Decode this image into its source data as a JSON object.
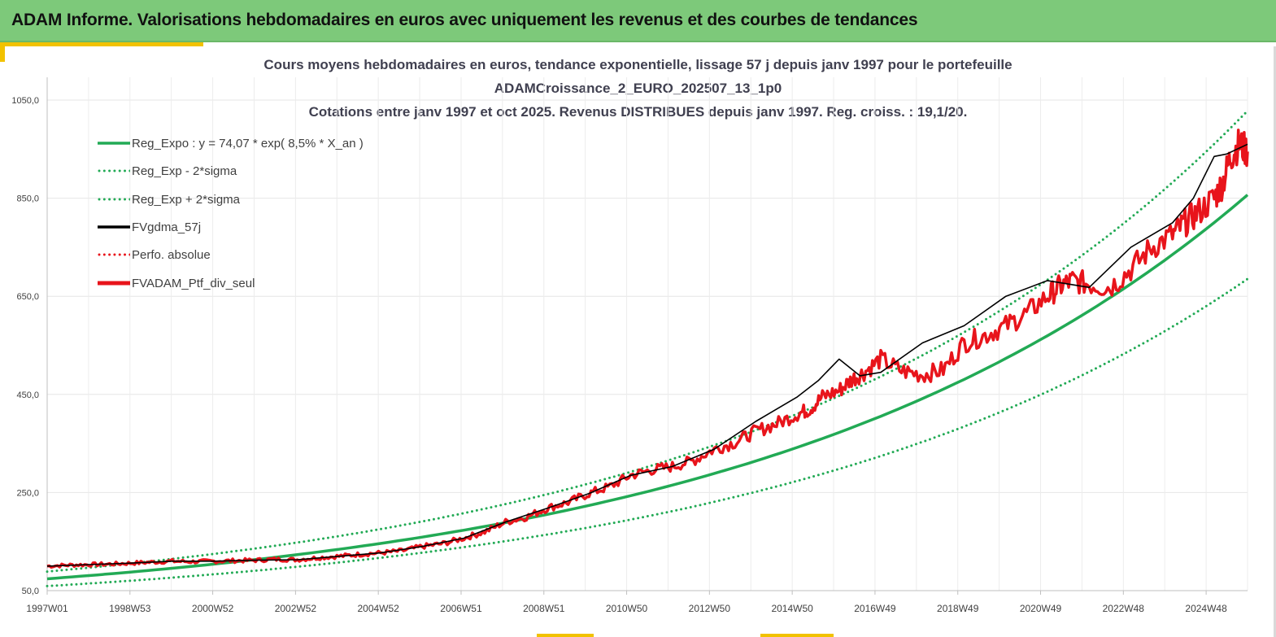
{
  "header": {
    "title": "ADAM Informe. Valorisations hebdomadaires en euros avec uniquement les revenus et des courbes de tendances"
  },
  "colors": {
    "banner": "#7dc97a",
    "accent_yellow": "#f2c200",
    "trend_green": "#22aa55",
    "red": "#e8141b",
    "black": "#000000"
  },
  "chart_data": {
    "type": "line",
    "title_lines": [
      "Cours moyens hebdomadaires  en euros, tendance exponentielle, lissage 57 j depuis janv 1997 pour le portefeuille",
      "ADAMCroissance_2_EURO_202507_13_1p0",
      "Cotations  entre janv 1997 et oct 2025. Revenus DISTRIBUES depuis janv 1997. Reg. croiss. : 19,1/20."
    ],
    "x_tick_labels": [
      "1997W01",
      "1998W53",
      "2000W52",
      "2002W52",
      "2004W52",
      "2006W51",
      "2008W51",
      "2010W50",
      "2012W50",
      "2014W50",
      "2016W49",
      "2018W49",
      "2020W49",
      "2022W48",
      "2024W48"
    ],
    "x_range": [
      "1997W01",
      "2025W43"
    ],
    "y_ticks": [
      50,
      250,
      450,
      650,
      850,
      1050
    ],
    "y_tick_labels": [
      "50,0",
      "250,0",
      "450,0",
      "650,0",
      "850,0",
      "1050,0"
    ],
    "ylim": [
      50,
      1050
    ],
    "grid": true,
    "legend_position": "top-left",
    "trend": {
      "a": 74.07,
      "rate": 0.085,
      "sigma_factor": 0.2
    },
    "series": [
      {
        "name": "Reg_Expo : y = 74,07 * exp( 8,5% *  X_an )",
        "key": "reg",
        "color": "#22aa55",
        "style": "solid",
        "x_year": [
          0,
          2,
          4,
          6,
          8,
          10,
          12,
          14,
          16,
          18,
          20,
          22,
          24,
          26,
          28.8
        ],
        "values": [
          74.1,
          87.9,
          104.1,
          123.5,
          146.4,
          173.6,
          205.8,
          244.0,
          289.3,
          343.0,
          406.7,
          482.2,
          571.7,
          677.8,
          853.0
        ]
      },
      {
        "name": "Reg_Exp - 2*sigma",
        "key": "low",
        "color": "#22aa55",
        "style": "dotted",
        "x_year": [
          0,
          2,
          4,
          6,
          8,
          10,
          12,
          14,
          16,
          18,
          20,
          22,
          24,
          26,
          28.8
        ],
        "values": [
          59.3,
          70.3,
          83.3,
          98.8,
          117.1,
          138.9,
          164.6,
          195.2,
          231.4,
          274.4,
          325.4,
          385.8,
          457.4,
          542.2,
          697.0
        ]
      },
      {
        "name": "Reg_Exp + 2*sigma",
        "key": "high",
        "color": "#22aa55",
        "style": "dotted",
        "x_year": [
          0,
          2,
          4,
          6,
          8,
          10,
          12,
          14,
          16,
          18,
          20,
          22,
          24,
          26,
          28.8
        ],
        "values": [
          88.9,
          105.4,
          124.9,
          148.2,
          175.7,
          208.3,
          246.9,
          292.8,
          347.2,
          411.6,
          488.0,
          578.6,
          686.0,
          813.4,
          1095.0
        ]
      },
      {
        "name": "FVgdma_57j",
        "key": "smooth",
        "color": "#000000",
        "style": "solid",
        "x_year": [
          0,
          1,
          2,
          3,
          4,
          5,
          6,
          7,
          8,
          9,
          10,
          11,
          12,
          13,
          14,
          15,
          16,
          17,
          18,
          18.5,
          19,
          19.5,
          20,
          21,
          22,
          23,
          24,
          25,
          26,
          27,
          27.5,
          28,
          28.3,
          28.8
        ],
        "values": [
          100,
          103,
          106,
          110,
          110,
          112,
          113,
          120,
          127,
          140,
          157,
          190,
          218,
          248,
          285,
          303,
          338,
          395,
          445,
          478,
          522,
          488,
          495,
          555,
          590,
          650,
          682,
          668,
          750,
          800,
          850,
          935,
          940,
          960
        ]
      },
      {
        "name": "Perfo. absolue",
        "key": "perfo",
        "color": "#e8141b",
        "style": "dotted",
        "x_year": [],
        "values": []
      },
      {
        "name": "FVADAM_Ptf_div_seul",
        "key": "ptf",
        "color": "#e8141b",
        "style": "solid",
        "x_year": [
          0,
          0.5,
          1,
          1.5,
          2,
          2.5,
          3,
          3.5,
          4,
          4.5,
          5,
          5.5,
          6,
          6.5,
          7,
          7.5,
          8,
          8.5,
          9,
          9.5,
          10,
          10.5,
          11,
          11.5,
          12,
          12.5,
          13,
          13.5,
          14,
          14.5,
          15,
          15.5,
          16,
          16.5,
          17,
          17.5,
          18,
          18.3,
          18.6,
          19,
          19.3,
          19.6,
          20,
          20.5,
          21,
          21.5,
          22,
          22.5,
          23,
          23.5,
          24,
          24.3,
          24.6,
          25,
          25.5,
          26,
          26.5,
          27,
          27.3,
          27.6,
          28,
          28.2,
          28.4,
          28.6,
          28.8
        ],
        "values": [
          100,
          102,
          103,
          104,
          106,
          108,
          110,
          109,
          110,
          111,
          112,
          114,
          113,
          117,
          120,
          124,
          127,
          131,
          140,
          146,
          157,
          170,
          190,
          200,
          218,
          230,
          248,
          262,
          285,
          296,
          303,
          315,
          338,
          352,
          375,
          390,
          410,
          420,
          445,
          458,
          480,
          495,
          522,
          498,
          490,
          500,
          555,
          570,
          590,
          615,
          650,
          670,
          682,
          675,
          668,
          705,
          750,
          775,
          800,
          820,
          850,
          880,
          935,
          960,
          945
        ]
      }
    ]
  }
}
